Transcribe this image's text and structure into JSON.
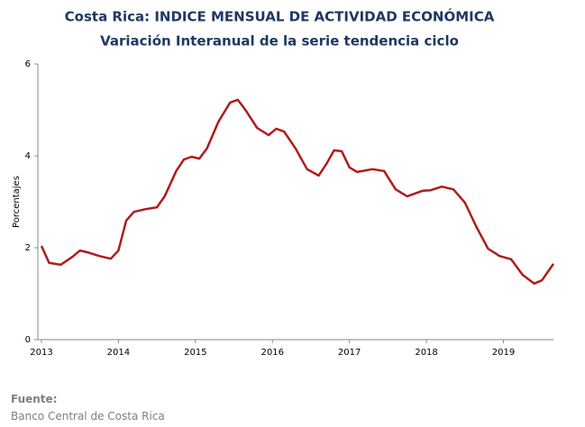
{
  "chart_data": {
    "type": "line",
    "title": "Costa Rica: INDICE MENSUAL DE ACTIVIDAD ECONÓMICA",
    "subtitle": "Variación Interanual de la serie tendencia ciclo",
    "y_label": "Porcentajes",
    "source_label": "Fuente:",
    "source": "Banco Central de Costa Rica",
    "xlim": [
      2013,
      2019.65
    ],
    "xticks": [
      2013,
      2014,
      2015,
      2016,
      2017,
      2018,
      2019
    ],
    "ylim": [
      0,
      6
    ],
    "yticks": [
      0,
      2,
      4,
      6
    ],
    "grid": false,
    "series": [
      {
        "name": "Variación interanual",
        "color": "#b01c1c",
        "x": [
          2013.0,
          2013.1,
          2013.25,
          2013.4,
          2013.5,
          2013.6,
          2013.75,
          2013.9,
          2014.0,
          2014.1,
          2014.2,
          2014.35,
          2014.5,
          2014.6,
          2014.75,
          2014.85,
          2014.95,
          2015.05,
          2015.15,
          2015.3,
          2015.45,
          2015.55,
          2015.65,
          2015.8,
          2015.95,
          2016.05,
          2016.15,
          2016.3,
          2016.45,
          2016.6,
          2016.7,
          2016.8,
          2016.9,
          2017.0,
          2017.1,
          2017.3,
          2017.45,
          2017.6,
          2017.75,
          2017.85,
          2017.95,
          2018.05,
          2018.2,
          2018.35,
          2018.5,
          2018.65,
          2018.8,
          2018.95,
          2019.1,
          2019.25,
          2019.4,
          2019.5,
          2019.65
        ],
        "values": [
          2.04,
          1.67,
          1.63,
          1.8,
          1.94,
          1.9,
          1.82,
          1.76,
          1.94,
          2.59,
          2.78,
          2.84,
          2.88,
          3.12,
          3.67,
          3.92,
          3.98,
          3.94,
          4.16,
          4.75,
          5.16,
          5.22,
          5.0,
          4.61,
          4.45,
          4.59,
          4.53,
          4.16,
          3.71,
          3.57,
          3.82,
          4.12,
          4.1,
          3.75,
          3.65,
          3.71,
          3.67,
          3.27,
          3.12,
          3.18,
          3.24,
          3.25,
          3.33,
          3.27,
          2.98,
          2.45,
          1.98,
          1.82,
          1.75,
          1.41,
          1.22,
          1.29,
          1.65
        ]
      }
    ]
  }
}
